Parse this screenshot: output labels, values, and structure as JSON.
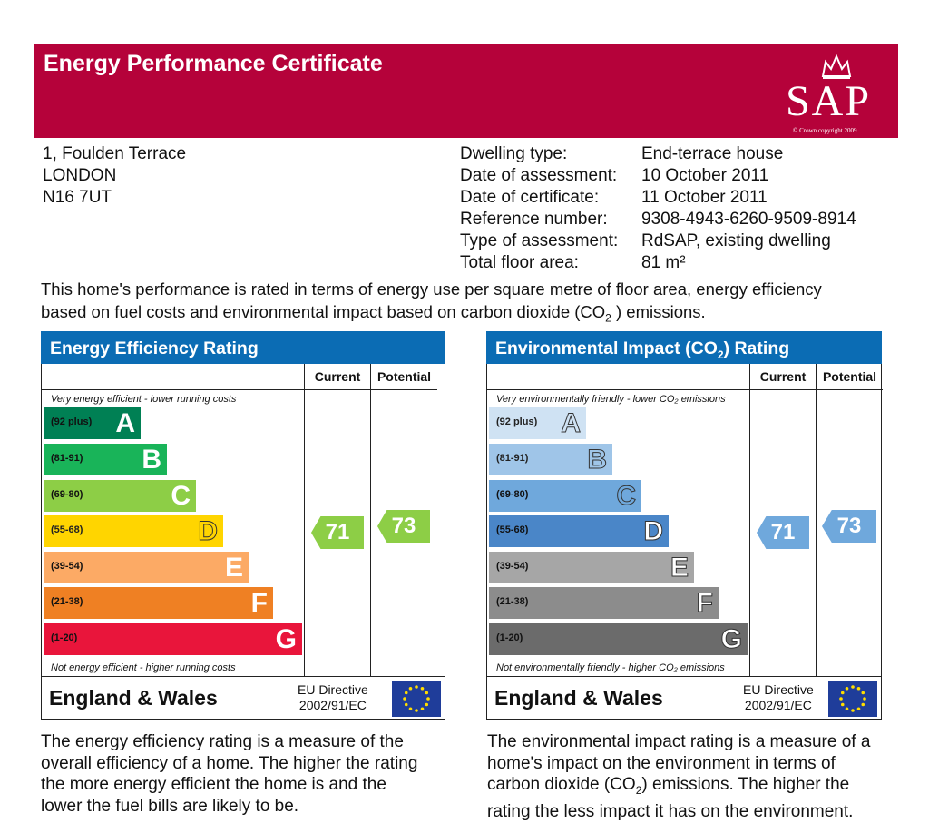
{
  "header": {
    "title": "Energy Performance Certificate",
    "logo": "SAP",
    "copyright": "© Crown copyright 2009"
  },
  "address": [
    "1, Foulden Terrace",
    "LONDON",
    "N16 7UT"
  ],
  "details": [
    {
      "label": "Dwelling type:",
      "value": "End-terrace house"
    },
    {
      "label": "Date of assessment:",
      "value": "10 October 2011"
    },
    {
      "label": "Date of certificate:",
      "value": "11 October 2011"
    },
    {
      "label": "Reference number:",
      "value": "9308-4943-6260-9509-8914"
    },
    {
      "label": "Type of assessment:",
      "value": "RdSAP, existing dwelling"
    },
    {
      "label": "Total floor area:",
      "value": "81 m²"
    }
  ],
  "intro": {
    "line1": "This home's performance is rated in terms of energy use per square metre of floor area, energy efficiency",
    "line2_a": "based on fuel costs and environmental impact based on carbon dioxide (CO",
    "line2_sub": "2",
    "line2_b": ") emissions."
  },
  "common": {
    "current": "Current",
    "potential": "Potential",
    "country": "England & Wales",
    "eu1": "EU Directive",
    "eu2": "2002/91/EC"
  },
  "energy": {
    "title": "Energy Efficiency Rating",
    "top": "Very energy efficient - lower running costs",
    "bottom": "Not energy efficient - higher running costs",
    "current": "71",
    "potential": "73",
    "desc": [
      "The energy efficiency rating is a measure of the",
      "overall efficiency of a home. The higher the rating",
      "the more energy efficient the home is and the",
      "lower the fuel bills are likely to be."
    ],
    "bands": [
      {
        "range": "(92 plus)",
        "letter": "A",
        "color": "#008054"
      },
      {
        "range": "(81-91)",
        "letter": "B",
        "color": "#19b459"
      },
      {
        "range": "(69-80)",
        "letter": "C",
        "color": "#8dce46"
      },
      {
        "range": "(55-68)",
        "letter": "D",
        "color": "#ffd500"
      },
      {
        "range": "(39-54)",
        "letter": "E",
        "color": "#fcaa65"
      },
      {
        "range": "(21-38)",
        "letter": "F",
        "color": "#ef8023"
      },
      {
        "range": "(1-20)",
        "letter": "G",
        "color": "#e9153b"
      }
    ]
  },
  "environment": {
    "title_a": "Environmental Impact (CO",
    "title_sub": "2",
    "title_b": ") Rating",
    "top": "Very environmentally friendly - lower CO₂ emissions",
    "bottom": "Not environmentally friendly - higher CO₂ emissions",
    "current": "71",
    "potential": "73",
    "desc_1": "The environmental impact rating is a measure of a",
    "desc_2": "home's impact on the environment in terms of",
    "desc_3a": "carbon dioxide (CO",
    "desc_3sub": "2",
    "desc_3b": ") emissions. The higher the",
    "desc_4": "rating the less impact it has on the environment.",
    "bands": [
      {
        "range": "(92 plus)",
        "letter": "A",
        "color": "#cfe2f3"
      },
      {
        "range": "(81-91)",
        "letter": "B",
        "color": "#9fc5e8"
      },
      {
        "range": "(69-80)",
        "letter": "C",
        "color": "#6fa8dc"
      },
      {
        "range": "(55-68)",
        "letter": "D",
        "color": "#4a86c8"
      },
      {
        "range": "(39-54)",
        "letter": "E",
        "color": "#a6a6a6"
      },
      {
        "range": "(21-38)",
        "letter": "F",
        "color": "#8c8c8c"
      },
      {
        "range": "(1-20)",
        "letter": "G",
        "color": "#6b6b6b"
      }
    ]
  }
}
